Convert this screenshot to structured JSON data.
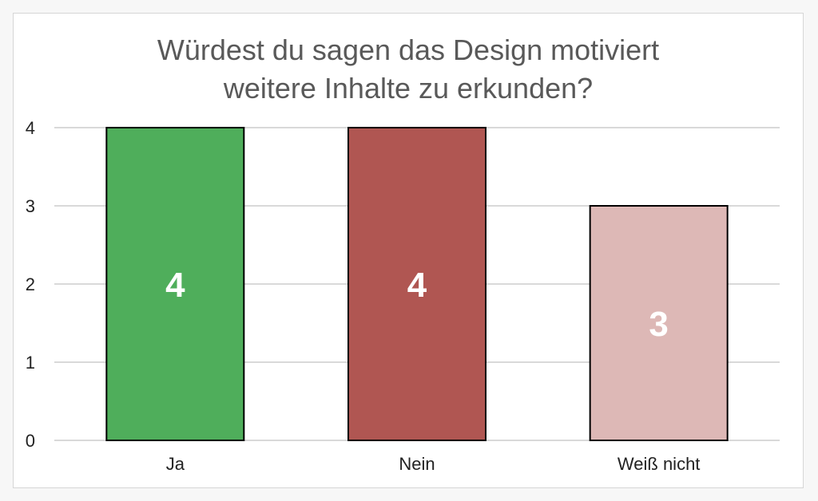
{
  "chart_data": {
    "type": "bar",
    "title_lines": [
      "Würdest du sagen das Design motiviert",
      "weitere Inhalte zu erkunden?"
    ],
    "categories": [
      "Ja",
      "Nein",
      "Weiß nicht"
    ],
    "values": [
      4,
      4,
      3
    ],
    "bar_colors": [
      "#4fae5b",
      "#b05652",
      "#ddb8b6"
    ],
    "ylim": [
      0,
      4
    ],
    "yticks": [
      0,
      1,
      2,
      3,
      4
    ],
    "grid": true,
    "legend": "none"
  }
}
